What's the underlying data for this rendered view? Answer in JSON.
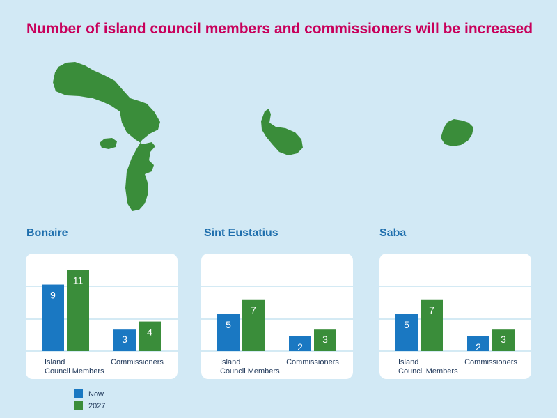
{
  "title": "Number of island council members and commissioners will be increased",
  "colors": {
    "title": "#c8005b",
    "island_name": "#1f6fad",
    "now": "#1a78c2",
    "y2027": "#3a8d3a",
    "map": "#3a8d3a",
    "background": "#d2e9f5",
    "gridline": "#aad4ea"
  },
  "legend": [
    {
      "label": "Now",
      "color": "#1a78c2"
    },
    {
      "label": "2027",
      "color": "#3a8d3a"
    }
  ],
  "chart_data": [
    {
      "type": "bar",
      "title": "Bonaire",
      "categories": [
        "Island\nCouncil Members",
        "Commissioners"
      ],
      "series": [
        {
          "name": "Now",
          "values": [
            9,
            3
          ]
        },
        {
          "name": "2027",
          "values": [
            11,
            4
          ]
        }
      ],
      "ylim": [
        0,
        13.2
      ],
      "grid": true
    },
    {
      "type": "bar",
      "title": "Sint Eustatius",
      "categories": [
        "Island\nCouncil Members",
        "Commissioners"
      ],
      "series": [
        {
          "name": "Now",
          "values": [
            5,
            2
          ]
        },
        {
          "name": "2027",
          "values": [
            7,
            3
          ]
        }
      ],
      "ylim": [
        0,
        13.2
      ],
      "grid": true
    },
    {
      "type": "bar",
      "title": "Saba",
      "categories": [
        "Island\nCouncil Members",
        "Commissioners"
      ],
      "series": [
        {
          "name": "Now",
          "values": [
            5,
            2
          ]
        },
        {
          "name": "2027",
          "values": [
            7,
            3
          ]
        }
      ],
      "ylim": [
        0,
        13.2
      ],
      "grid": true
    }
  ]
}
